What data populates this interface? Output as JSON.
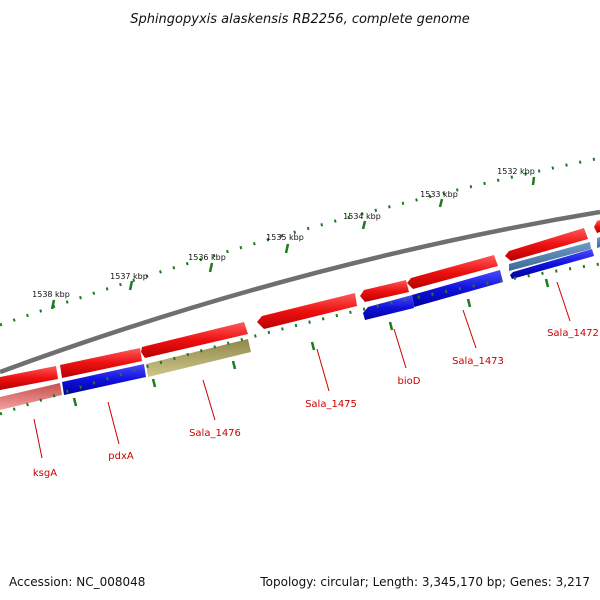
{
  "title": "Sphingopyxis alaskensis RB2256, complete genome",
  "footer": {
    "accession": "Accession: NC_008048",
    "summary": "Topology: circular; Length: 3,345,170 bp; Genes: 3,217"
  },
  "colors": {
    "backbone": "#7a7a7a",
    "tick": "#1f7a1f",
    "forward_gene": "#ee1111",
    "reverse_gene": "#1111dd",
    "reverse_gene_alt": "#4a7fb0",
    "pink_gene": "#e57878",
    "olive_gene": "#b7ac64",
    "label": "#cc0000"
  },
  "kbp_labels": [
    "1532 kbp",
    "1533 kbp",
    "1534 kbp",
    "1535 kbp",
    "1536 kbp",
    "1537 kbp",
    "1538 kbp"
  ],
  "gene_labels": {
    "ksgA": "ksgA",
    "pdxA": "pdxA",
    "sala_1476": "Sala_1476",
    "sala_1475": "Sala_1475",
    "bioD": "bioD",
    "sala_1473": "Sala_1473",
    "sala_1472": "Sala_1472"
  }
}
